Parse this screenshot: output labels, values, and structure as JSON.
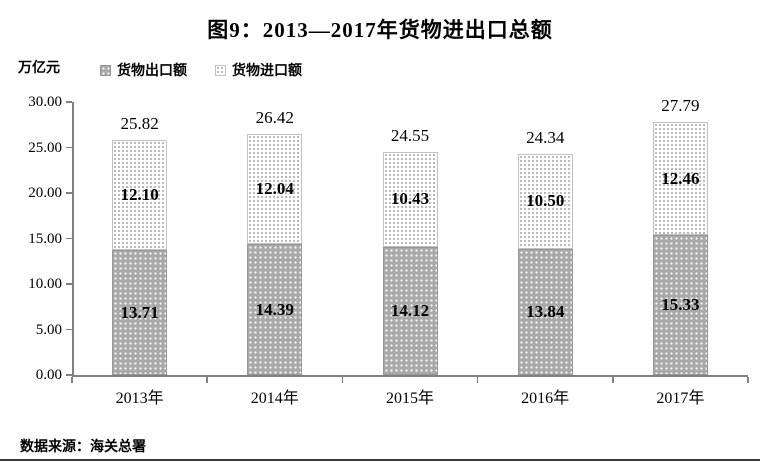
{
  "figure": {
    "title": "图9：2013—2017年货物进出口总额",
    "unit_label": "万亿元",
    "source": "数据来源：海关总署"
  },
  "chart_data": {
    "type": "bar",
    "stacked": true,
    "title": "图9：2013—2017年货物进出口总额",
    "ylabel": "万亿元",
    "xlabel": "",
    "categories": [
      "2013年",
      "2014年",
      "2015年",
      "2016年",
      "2017年"
    ],
    "series": [
      {
        "name": "货物出口额",
        "values": [
          13.71,
          14.39,
          14.12,
          13.84,
          15.33
        ]
      },
      {
        "name": "货物进口额",
        "values": [
          12.1,
          12.04,
          10.43,
          10.5,
          12.46
        ]
      }
    ],
    "totals": [
      25.82,
      26.42,
      24.55,
      24.34,
      27.79
    ],
    "ylim": [
      0,
      30
    ],
    "ytick_labels": [
      "0.00",
      "5.00",
      "10.00",
      "15.00",
      "20.00",
      "25.00",
      "30.00"
    ],
    "grid": false,
    "legend_position": "top-left",
    "colors": {
      "export_fill": "#a9a9a9",
      "import_fill": "#ffffff",
      "axis": "#808080",
      "text": "#000000"
    }
  }
}
